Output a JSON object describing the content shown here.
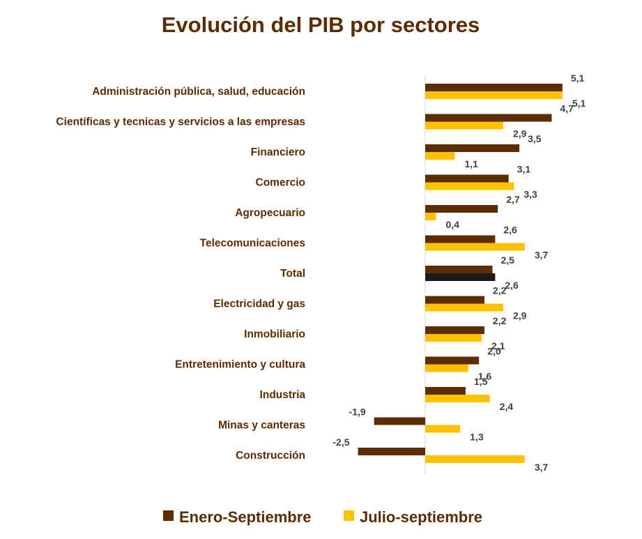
{
  "chart_data": {
    "type": "bar",
    "orientation": "horizontal",
    "title": "Evolución del PIB por sectores",
    "categories": [
      "Administración pública, salud, educación",
      "Científicas y tecnicas y servicios a las empresas",
      "Financiero",
      "Comercio",
      "Agropecuario",
      "Telecomunicaciones",
      "Total",
      "Electricidad y gas",
      "Inmobiliario",
      "Entretenimiento y cultura",
      "Industria",
      "Minas y canteras",
      "Construcción"
    ],
    "series": [
      {
        "name": "Enero-Septiembre",
        "color": "#5c2d00",
        "values": [
          5.1,
          4.7,
          3.5,
          3.1,
          2.7,
          2.6,
          2.5,
          2.2,
          2.2,
          2.0,
          1.5,
          -1.9,
          -2.5
        ],
        "labels": [
          "5,1",
          "4,7",
          "3,5",
          "3,1",
          "2,7",
          "2,6",
          "2,5",
          "2,2",
          "2,2",
          "2,0",
          "1,5",
          "-1,9",
          "-2,5"
        ]
      },
      {
        "name": "Julio-septiembre",
        "color": "#ffc000",
        "highlight": {
          "category": "Total",
          "color": "#1a1a1a"
        },
        "values": [
          5.1,
          2.9,
          1.1,
          3.3,
          0.4,
          3.7,
          2.6,
          2.9,
          2.1,
          1.6,
          2.4,
          1.3,
          3.7
        ],
        "labels": [
          "5,1",
          "2,9",
          "1,1",
          "3,3",
          "0,4",
          "3,7",
          "2,6",
          "2,9",
          "2,1",
          "1,6",
          "2,4",
          "1,3",
          "3,7"
        ]
      }
    ],
    "grid": false,
    "legend_position": "bottom"
  }
}
